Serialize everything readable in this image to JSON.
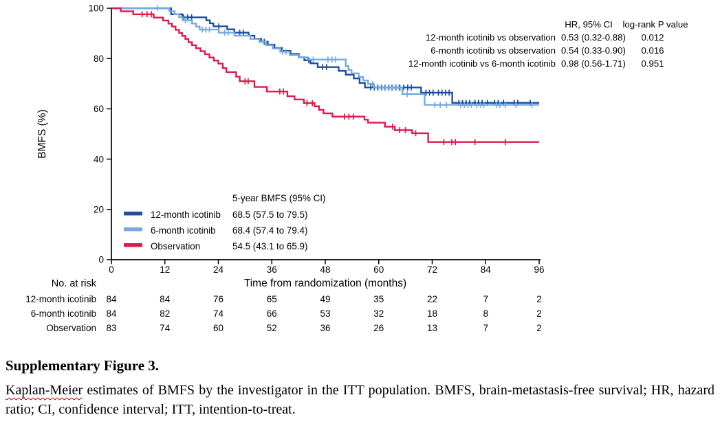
{
  "chart_data": {
    "type": "line",
    "subtype": "kaplan-meier-step",
    "title": "",
    "xlabel": "Time from randomization (months)",
    "ylabel": "BMFS (%)",
    "xlim": [
      0,
      96
    ],
    "ylim": [
      0,
      100
    ],
    "xticks": [
      0,
      12,
      24,
      36,
      48,
      60,
      72,
      84,
      96
    ],
    "yticks": [
      0,
      20,
      40,
      60,
      80,
      100
    ],
    "grid": false,
    "legend_position": "lower-left-inside",
    "series": [
      {
        "name": "12-month icotinib",
        "color": "#1c4f9f",
        "steps": [
          [
            0,
            100
          ],
          [
            13.4,
            97.6
          ],
          [
            15.9,
            96.4
          ],
          [
            21.3,
            95.2
          ],
          [
            22.1,
            94.0
          ],
          [
            22.9,
            92.8
          ],
          [
            26.0,
            91.6
          ],
          [
            27.6,
            90.3
          ],
          [
            30.8,
            89.1
          ],
          [
            32.1,
            87.9
          ],
          [
            33.6,
            86.7
          ],
          [
            35.1,
            85.5
          ],
          [
            36.6,
            84.2
          ],
          [
            38.3,
            83.0
          ],
          [
            40.2,
            81.8
          ],
          [
            42.1,
            80.5
          ],
          [
            43.3,
            79.3
          ],
          [
            44.7,
            78.1
          ],
          [
            46.3,
            76.6
          ],
          [
            51.0,
            75.1
          ],
          [
            52.6,
            73.6
          ],
          [
            54.4,
            72.1
          ],
          [
            55.7,
            70.3
          ],
          [
            56.9,
            68.5
          ],
          [
            69.5,
            66.4
          ],
          [
            76.5,
            62.4
          ]
        ],
        "end_time": 96,
        "censor_times": [
          16.2,
          17.1,
          18.0,
          24.1,
          28.8,
          29.6,
          34.3,
          44.3,
          47.4,
          48.3,
          58.2,
          59.0,
          59.8,
          60.6,
          61.4,
          62.2,
          63.0,
          63.8,
          64.6,
          65.6,
          66.5,
          67.3,
          70.6,
          71.4,
          72.2,
          73.4,
          74.2,
          75.0,
          75.8,
          78.0,
          78.8,
          79.6,
          80.4,
          81.6,
          82.4,
          83.2,
          84.4,
          86.0,
          86.8,
          88.0,
          90.4,
          91.2,
          94.0
        ]
      },
      {
        "name": "6-month icotinib",
        "color": "#74aae1",
        "steps": [
          [
            0,
            100
          ],
          [
            13.0,
            98.8
          ],
          [
            14.2,
            97.6
          ],
          [
            15.2,
            96.4
          ],
          [
            16.0,
            95.2
          ],
          [
            18.1,
            93.9
          ],
          [
            19.0,
            92.7
          ],
          [
            19.8,
            91.5
          ],
          [
            24.1,
            90.3
          ],
          [
            27.6,
            89.1
          ],
          [
            31.2,
            87.8
          ],
          [
            33.2,
            86.6
          ],
          [
            34.7,
            85.3
          ],
          [
            36.2,
            84.0
          ],
          [
            37.9,
            82.7
          ],
          [
            40.0,
            81.4
          ],
          [
            42.2,
            80.5
          ],
          [
            44.0,
            79.6
          ],
          [
            52.6,
            77.0
          ],
          [
            53.2,
            75.5
          ],
          [
            53.9,
            74.1
          ],
          [
            55.5,
            72.7
          ],
          [
            56.5,
            71.3
          ],
          [
            57.6,
            69.9
          ],
          [
            58.9,
            68.4
          ],
          [
            65.3,
            65.9
          ],
          [
            70.3,
            61.6
          ]
        ],
        "end_time": 96,
        "censor_times": [
          10.3,
          16.6,
          20.4,
          21.2,
          22.0,
          25.4,
          26.2,
          38.4,
          39.2,
          45.3,
          48.6,
          49.5,
          50.3,
          58.6,
          60.7,
          61.5,
          62.3,
          63.1,
          63.9,
          64.8,
          66.4,
          72.6,
          73.8,
          75.2,
          78.4,
          79.2,
          80.0,
          80.8,
          82.0,
          82.8,
          83.6,
          86.4,
          87.2,
          88.4,
          90.8,
          94.4
        ]
      },
      {
        "name": "Observation",
        "color": "#e0194a",
        "steps": [
          [
            0,
            100
          ],
          [
            2.1,
            98.8
          ],
          [
            4.9,
            97.6
          ],
          [
            9.5,
            96.3
          ],
          [
            11.6,
            95.1
          ],
          [
            12.8,
            93.9
          ],
          [
            13.6,
            92.7
          ],
          [
            14.4,
            91.4
          ],
          [
            15.2,
            90.2
          ],
          [
            15.9,
            89.0
          ],
          [
            16.6,
            87.8
          ],
          [
            17.3,
            86.5
          ],
          [
            18.1,
            85.3
          ],
          [
            19.0,
            84.1
          ],
          [
            20.0,
            82.9
          ],
          [
            21.0,
            81.7
          ],
          [
            22.0,
            80.4
          ],
          [
            23.0,
            79.2
          ],
          [
            24.0,
            78.0
          ],
          [
            25.0,
            76.2
          ],
          [
            25.8,
            74.6
          ],
          [
            28.0,
            72.8
          ],
          [
            28.8,
            71.0
          ],
          [
            32.1,
            68.7
          ],
          [
            34.9,
            66.9
          ],
          [
            39.5,
            65.0
          ],
          [
            41.1,
            63.7
          ],
          [
            43.2,
            62.3
          ],
          [
            45.6,
            61.0
          ],
          [
            46.6,
            59.6
          ],
          [
            47.6,
            58.2
          ],
          [
            49.6,
            56.9
          ],
          [
            56.8,
            55.7
          ],
          [
            57.6,
            54.5
          ],
          [
            61.4,
            52.9
          ],
          [
            63.6,
            51.5
          ],
          [
            67.5,
            50.3
          ],
          [
            71.1,
            46.8
          ]
        ],
        "end_time": 96,
        "censor_times": [
          6.9,
          8.0,
          9.0,
          30.0,
          30.7,
          37.8,
          38.6,
          43.9,
          45.1,
          52.3,
          53.3,
          54.3,
          63.1,
          64.7,
          66.0,
          68.3,
          74.6,
          76.4,
          77.2,
          81.6,
          88.4
        ]
      }
    ]
  },
  "stats_table": {
    "col_headers": [
      "HR, 95% CI",
      "log-rank P value"
    ],
    "rows": [
      {
        "label": "12-month icotinib vs observation",
        "hr": "0.53 (0.32-0.88)",
        "p": "0.012"
      },
      {
        "label": "6-month icotinib vs observation",
        "hr": "0.54 (0.33-0.90)",
        "p": "0.016"
      },
      {
        "label": "12-month icotinib vs 6-month icotinib",
        "hr": "0.98 (0.56-1.71)",
        "p": "0.951"
      }
    ]
  },
  "legend": {
    "header": "5-year BMFS (95% CI)",
    "items": [
      {
        "label": "12-month icotinib",
        "value": "68.5 (57.5 to 79.5)",
        "color": "#1c4f9f"
      },
      {
        "label": "6-month icotinib",
        "value": "68.4 (57.4 to 79.4)",
        "color": "#74aae1"
      },
      {
        "label": "Observation",
        "value": "54.5 (43.1 to 65.9)",
        "color": "#e0194a"
      }
    ]
  },
  "risk_table": {
    "title": "No. at risk",
    "times": [
      0,
      12,
      24,
      36,
      48,
      60,
      72,
      84,
      96
    ],
    "rows": [
      {
        "label": "12-month icotinib",
        "counts": [
          "84",
          "84",
          "76",
          "65",
          "49",
          "35",
          "22",
          "7",
          "2"
        ]
      },
      {
        "label": "6-month icotinib",
        "counts": [
          "84",
          "82",
          "74",
          "66",
          "53",
          "32",
          "18",
          "8",
          "2"
        ]
      },
      {
        "label": "Observation",
        "counts": [
          "83",
          "74",
          "60",
          "52",
          "36",
          "26",
          "13",
          "7",
          "2"
        ]
      }
    ]
  },
  "caption": {
    "heading": "Supplementary Figure 3.",
    "body_highlight": "Kaplan-Meier",
    "body_rest": " estimates of BMFS by the investigator in the ITT population. BMFS, brain-metastasis-free survival; HR, hazard ratio; CI, confidence interval; ITT, intention-to-treat."
  }
}
